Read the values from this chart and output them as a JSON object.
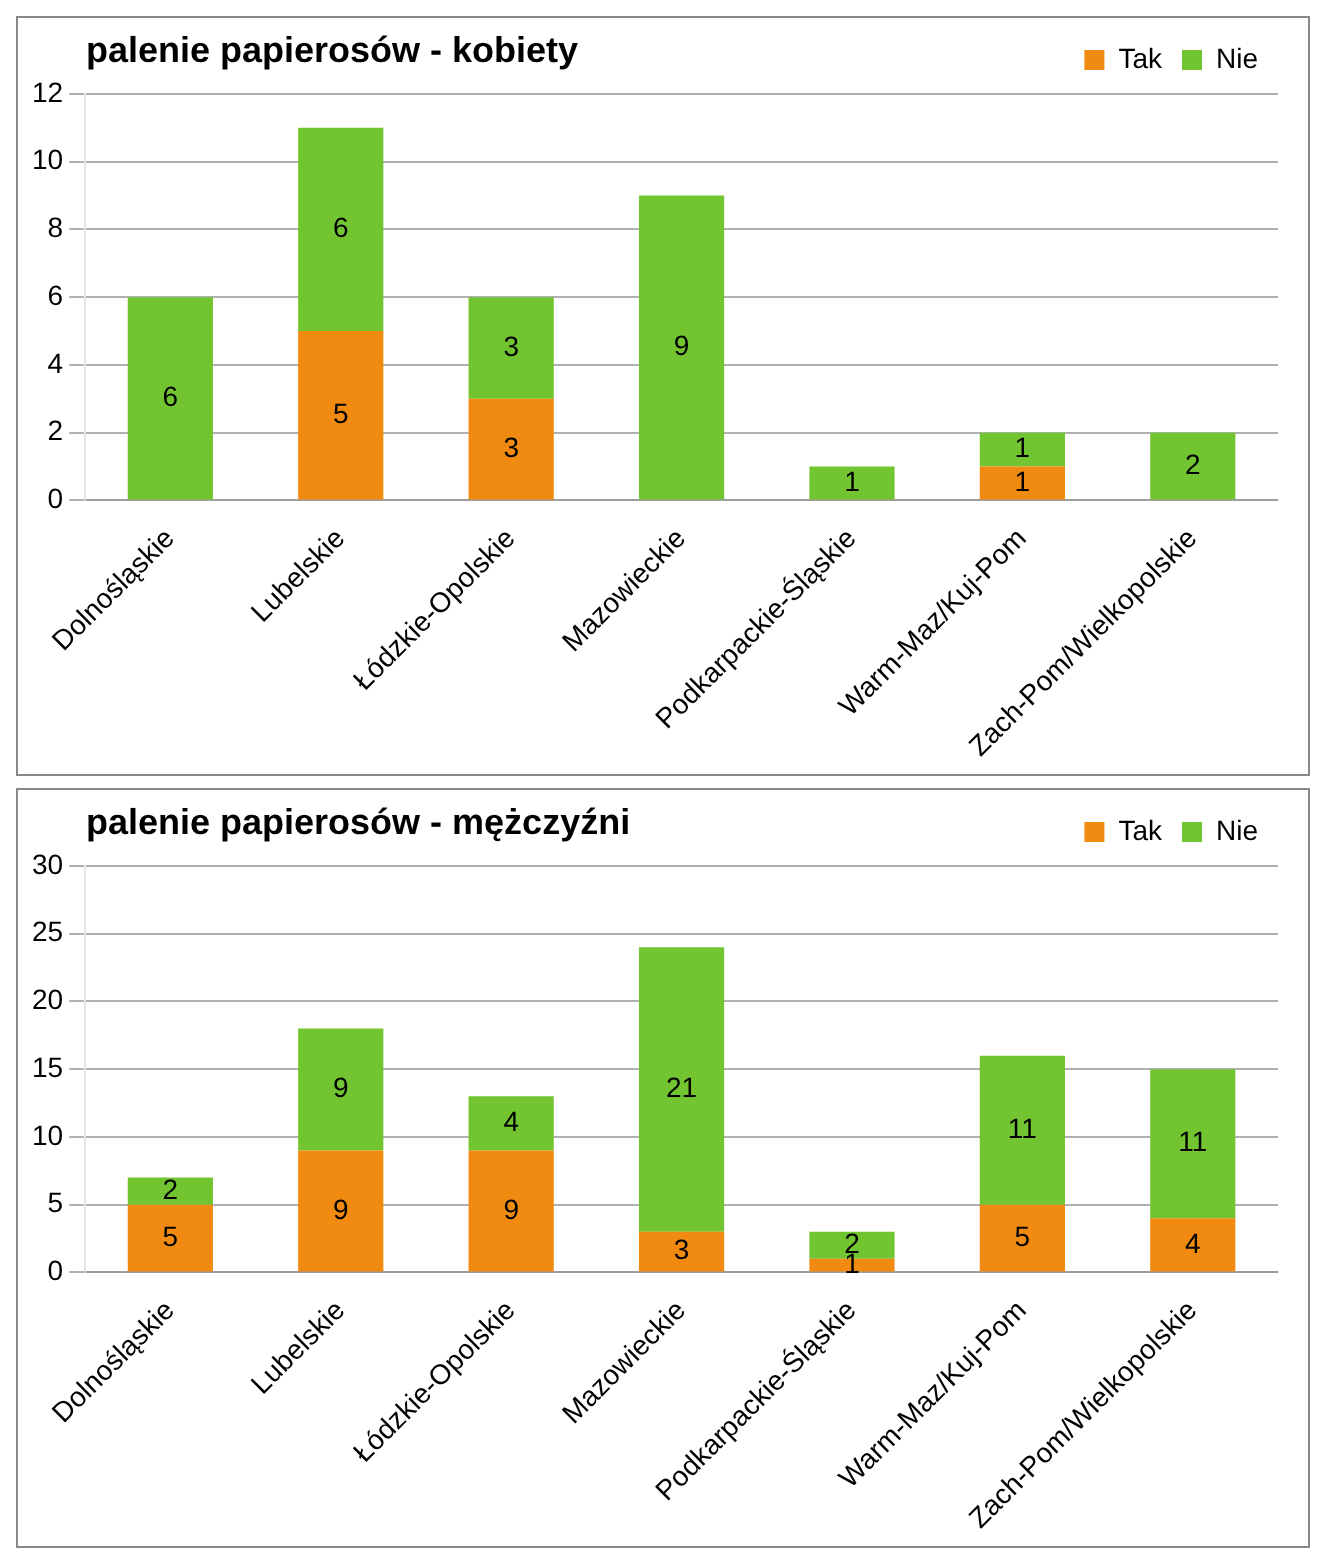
{
  "chart_data": [
    {
      "type": "bar",
      "title": "palenie papierosów - kobiety",
      "stacked": true,
      "legend": "top right",
      "grid": "y",
      "categories": [
        "Dolnośląskie",
        "Lubelskie",
        "Łódzkie-Opolskie",
        "Mazowieckie",
        "Podkarpackie-Śląskie",
        "Warm-Maz/Kuj-Pom",
        "Zach-Pom/Wielkopolskie"
      ],
      "ylim": [
        0,
        12
      ],
      "yticks": [
        0,
        2,
        4,
        6,
        8,
        10,
        12
      ],
      "series": [
        {
          "name": "Tak",
          "color": "#f08a10",
          "values": [
            0,
            5,
            3,
            0,
            0,
            1,
            0
          ],
          "value_labels": [
            null,
            "5",
            "3",
            null,
            null,
            "1",
            null
          ]
        },
        {
          "name": "Nie",
          "color": "#72c531",
          "values": [
            6,
            6,
            3,
            9,
            1,
            1,
            2
          ],
          "value_labels": [
            "6",
            "6",
            "3",
            "9",
            "1",
            "1",
            "2"
          ]
        }
      ]
    },
    {
      "type": "bar",
      "title": "palenie papierosów - mężczyźni",
      "stacked": true,
      "legend": "top right",
      "grid": "y",
      "categories": [
        "Dolnośląskie",
        "Lubelskie",
        "Łódzkie-Opolskie",
        "Mazowieckie",
        "Podkarpackie-Śląskie",
        "Warm-Maz/Kuj-Pom",
        "Zach-Pom/Wielkopolskie"
      ],
      "ylim": [
        0,
        30
      ],
      "yticks": [
        0,
        5,
        10,
        15,
        20,
        25,
        30
      ],
      "series": [
        {
          "name": "Tak",
          "color": "#f08a10",
          "values": [
            5,
            9,
            9,
            3,
            1,
            5,
            4
          ],
          "value_labels": [
            "5",
            "9",
            "9",
            "3",
            "1",
            "5",
            "4"
          ]
        },
        {
          "name": "Nie",
          "color": "#72c531",
          "values": [
            2,
            9,
            4,
            21,
            2,
            11,
            11
          ],
          "value_labels": [
            "2",
            "9",
            "4",
            "21",
            "2",
            "11",
            "11"
          ]
        }
      ]
    }
  ]
}
